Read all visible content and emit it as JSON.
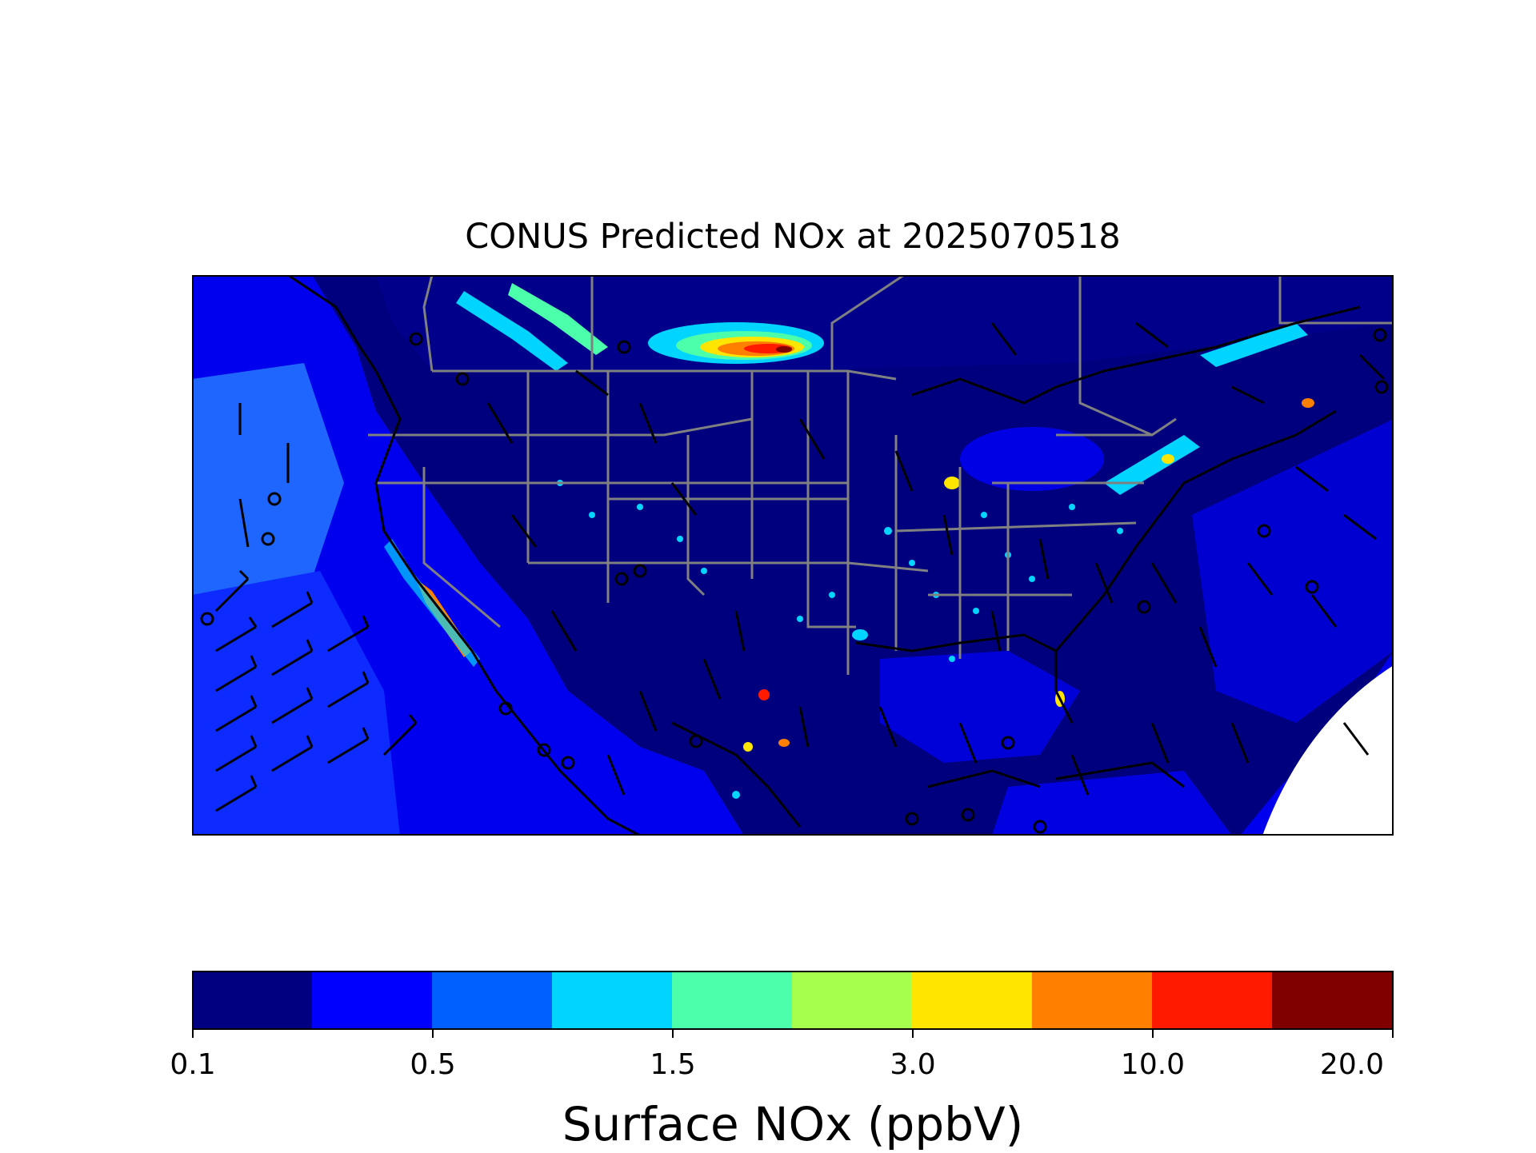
{
  "title": "CONUS Predicted NOx at 2025070518",
  "colorbar": {
    "label": "Surface NOx (ppbV)",
    "tick_labels": [
      "0.1",
      "0.5",
      "1.5",
      "3.0",
      "10.0",
      "20.0"
    ],
    "colors": [
      "#000080",
      "#0000ff",
      "#0060ff",
      "#00d4ff",
      "#4cffaa",
      "#a6ff4c",
      "#ffe500",
      "#ff7f00",
      "#ff1a00",
      "#800000"
    ]
  },
  "map": {
    "ocean_color": "#0000ff",
    "land_color": "#00007f",
    "border_color": "#808080",
    "coastline_color": "#000000",
    "overlay": "wind-barbs"
  }
}
